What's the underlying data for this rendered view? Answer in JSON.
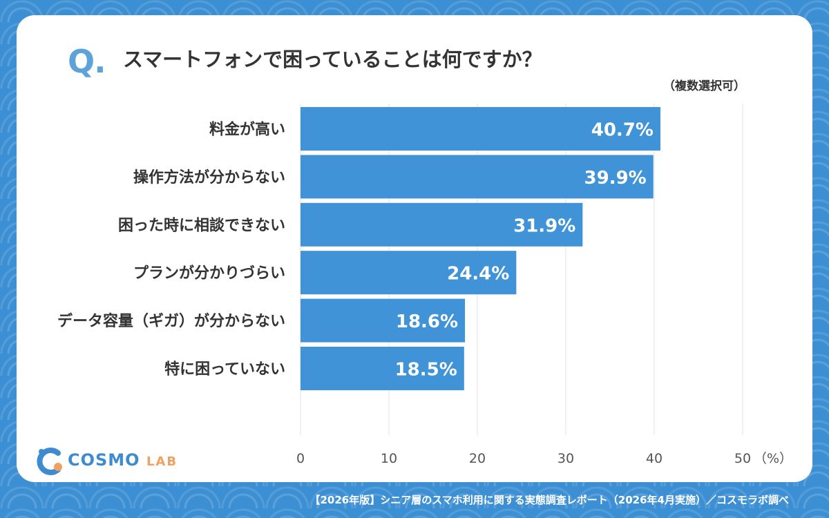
{
  "question_mark": "Q.",
  "title": "スマートフォンで困っていることは何ですか？",
  "note": "（複数選択可）",
  "logo": {
    "main": "COSMO",
    "sub": "LAB"
  },
  "footer": "【2026年版】シニア層のスマホ利用に関する実態調査レポート（2026年4月実施）／コスモラボ調べ",
  "colors": {
    "bar": "#3f93d6",
    "background": "#3d8fd4",
    "accent": "#5da2d8"
  },
  "chart_data": {
    "type": "bar",
    "orientation": "horizontal",
    "categories": [
      "料金が高い",
      "操作方法が分からない",
      "困った時に相談できない",
      "プランが分かりづらい",
      "データ容量（ギガ）が分からない",
      "特に困っていない"
    ],
    "values": [
      40.7,
      39.9,
      31.9,
      24.4,
      18.6,
      18.5
    ],
    "value_labels": [
      "40.7%",
      "39.9%",
      "31.9%",
      "24.4%",
      "18.6%",
      "18.5%"
    ],
    "xticks": [
      "0",
      "10",
      "20",
      "30",
      "40",
      "50"
    ],
    "xunit": "（%）",
    "xlim": [
      0,
      50
    ],
    "grid": true
  }
}
